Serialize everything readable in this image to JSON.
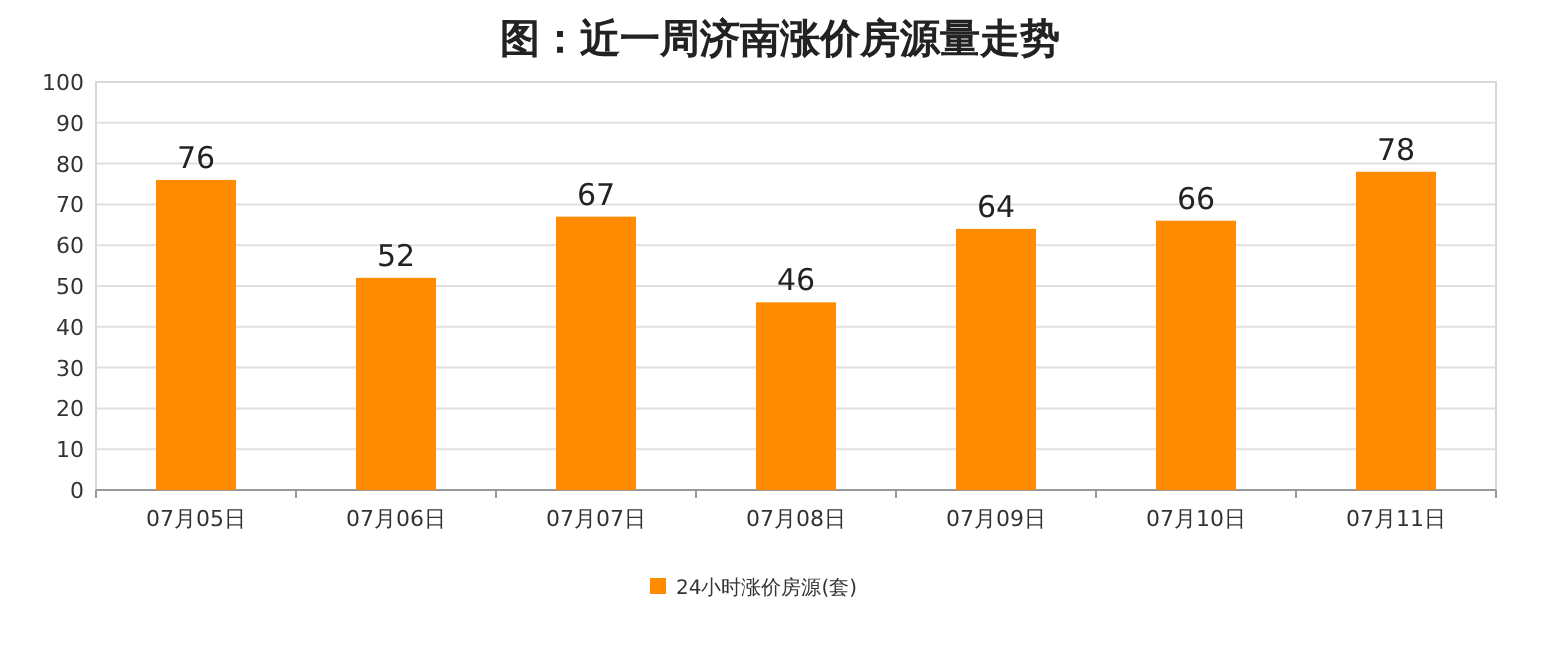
{
  "chart_data": {
    "type": "bar",
    "title": "图：近一周济南涨价房源量走势",
    "categories": [
      "07月05日",
      "07月06日",
      "07月07日",
      "07月08日",
      "07月09日",
      "07月10日",
      "07月11日"
    ],
    "series": [
      {
        "name": "24小时涨价房源(套)",
        "color": "#ff8c00",
        "values": [
          76,
          52,
          67,
          46,
          64,
          66,
          78
        ]
      }
    ],
    "ylim": [
      0,
      100
    ],
    "yticks": [
      0,
      10,
      20,
      30,
      40,
      50,
      60,
      70,
      80,
      90,
      100
    ],
    "grid": "y",
    "legend": "bottom",
    "data_labels": true
  }
}
